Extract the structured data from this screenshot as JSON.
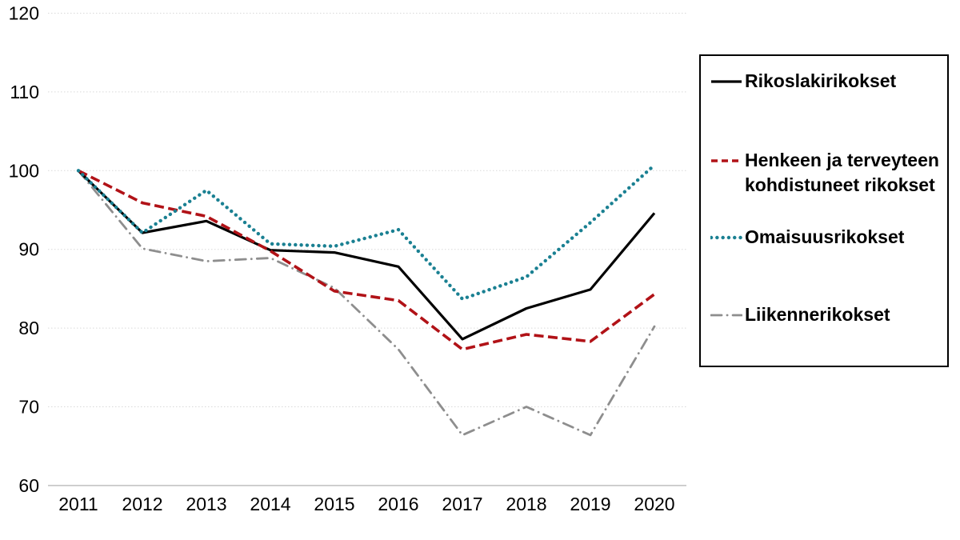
{
  "chart_data": {
    "type": "line",
    "title": "",
    "xlabel": "",
    "ylabel": "",
    "categories": [
      "2011",
      "2012",
      "2013",
      "2014",
      "2015",
      "2016",
      "2017",
      "2018",
      "2019",
      "2020"
    ],
    "series": [
      {
        "name": "Rikoslakirikokset",
        "color": "#000000",
        "style": "solid",
        "values": [
          100,
          92.1,
          93.6,
          89.9,
          89.6,
          87.8,
          78.6,
          82.5,
          84.9,
          94.6
        ]
      },
      {
        "name": "Henkeen ja terveyteen kohdistuneet rikokset",
        "color": "#B11217",
        "style": "dashed",
        "values": [
          100,
          95.9,
          94.2,
          89.8,
          84.7,
          83.5,
          77.3,
          79.2,
          78.3,
          84.3
        ]
      },
      {
        "name": "Omaisuusrikokset",
        "color": "#1A8092",
        "style": "dotted",
        "values": [
          100,
          92.1,
          97.5,
          90.7,
          90.4,
          92.5,
          83.7,
          86.5,
          93.4,
          100.7
        ]
      },
      {
        "name": "Liikennerikokset",
        "color": "#8E8E8E",
        "style": "dashdot",
        "values": [
          100,
          90.1,
          88.5,
          88.9,
          85.1,
          77.3,
          66.4,
          70.0,
          66.4,
          80.2
        ]
      }
    ],
    "ylim": [
      60,
      120
    ],
    "yticks": [
      60,
      70,
      80,
      90,
      100,
      110,
      120
    ],
    "grid": true,
    "legend_position": "right",
    "colors": {
      "grid": "#D9D9D9",
      "axis": "#BFBFBF",
      "text": "#000000"
    }
  }
}
